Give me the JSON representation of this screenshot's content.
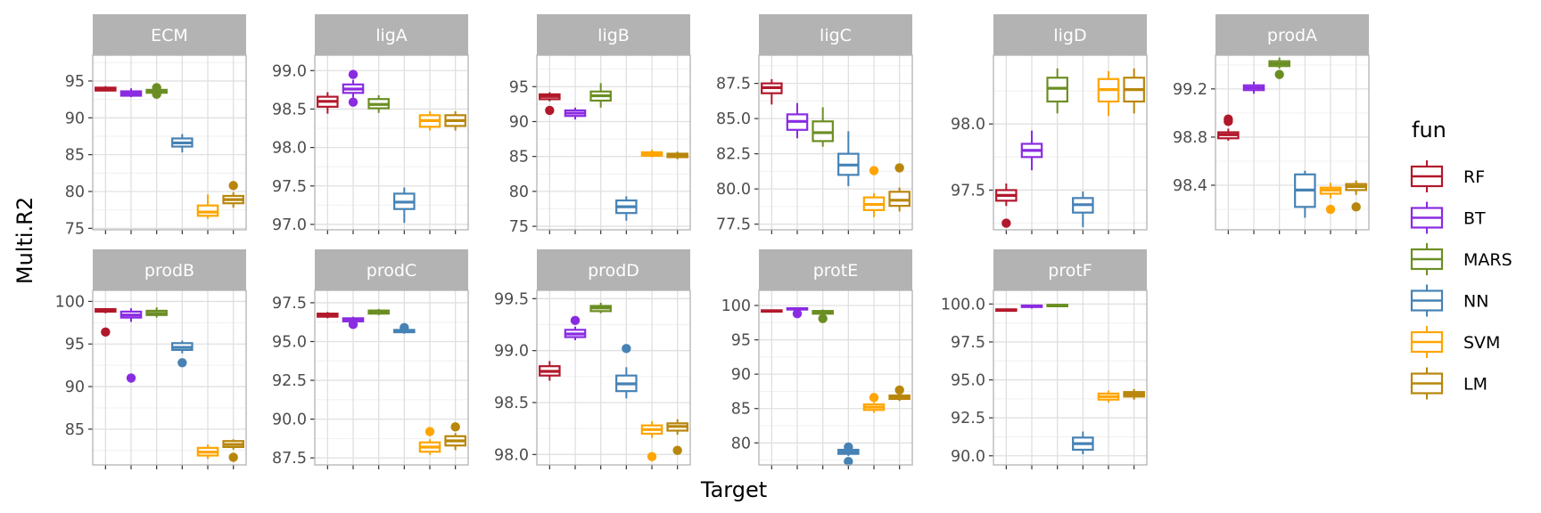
{
  "chart_data": {
    "type": "boxplot",
    "facet_by": "response",
    "xlabel": "Target",
    "ylabel": "Multi.R2",
    "x_tick_labels_shown": false,
    "grid": true,
    "legend": {
      "title": "fun",
      "placement": "right",
      "items": [
        {
          "name": "RF",
          "color": "#B2182B"
        },
        {
          "name": "BT",
          "color": "#8A2BE2"
        },
        {
          "name": "MARS",
          "color": "#6B8E23"
        },
        {
          "name": "NN",
          "color": "#4682B4"
        },
        {
          "name": "SVM",
          "color": "#FFA500"
        },
        {
          "name": "LM",
          "color": "#B8860B"
        }
      ]
    },
    "panels": [
      {
        "title": "ECM",
        "ylim": [
          74.8,
          98.5
        ],
        "yticks": [
          75,
          80,
          85,
          90,
          95
        ],
        "boxes": [
          {
            "fun": "RF",
            "lo": 93.6,
            "q1": 93.7,
            "med": 93.9,
            "q3": 94.1,
            "hi": 94.3,
            "out": []
          },
          {
            "fun": "BT",
            "lo": 92.8,
            "q1": 93.0,
            "med": 93.3,
            "q3": 93.6,
            "hi": 94.0,
            "out": []
          },
          {
            "fun": "MARS",
            "lo": 93.1,
            "q1": 93.4,
            "med": 93.6,
            "q3": 93.8,
            "hi": 94.3,
            "out": [
              93.2,
              94.1
            ]
          },
          {
            "fun": "NN",
            "lo": 85.3,
            "q1": 86.1,
            "med": 86.6,
            "q3": 87.2,
            "hi": 87.8,
            "out": []
          },
          {
            "fun": "SVM",
            "lo": 76.3,
            "q1": 76.7,
            "med": 77.2,
            "q3": 78.1,
            "hi": 79.6,
            "out": []
          },
          {
            "fun": "LM",
            "lo": 77.8,
            "q1": 78.4,
            "med": 78.9,
            "q3": 79.4,
            "hi": 79.9,
            "out": [
              80.8
            ]
          }
        ]
      },
      {
        "title": "ligA",
        "ylim": [
          96.93,
          99.2
        ],
        "yticks": [
          97.0,
          97.5,
          98.0,
          98.5,
          99.0
        ],
        "tick_decimals": 1,
        "boxes": [
          {
            "fun": "RF",
            "lo": 98.44,
            "q1": 98.53,
            "med": 98.6,
            "q3": 98.66,
            "hi": 98.72,
            "out": []
          },
          {
            "fun": "BT",
            "lo": 98.65,
            "q1": 98.71,
            "med": 98.76,
            "q3": 98.82,
            "hi": 98.88,
            "out": [
              98.95,
              98.59
            ]
          },
          {
            "fun": "MARS",
            "lo": 98.45,
            "q1": 98.51,
            "med": 98.56,
            "q3": 98.63,
            "hi": 98.68,
            "out": []
          },
          {
            "fun": "NN",
            "lo": 97.02,
            "q1": 97.2,
            "med": 97.29,
            "q3": 97.4,
            "hi": 97.48,
            "out": []
          },
          {
            "fun": "SVM",
            "lo": 98.22,
            "q1": 98.27,
            "med": 98.35,
            "q3": 98.42,
            "hi": 98.47,
            "out": []
          },
          {
            "fun": "LM",
            "lo": 98.22,
            "q1": 98.28,
            "med": 98.35,
            "q3": 98.42,
            "hi": 98.47,
            "out": []
          }
        ]
      },
      {
        "title": "ligB",
        "ylim": [
          74.5,
          99.5
        ],
        "yticks": [
          75,
          80,
          85,
          90,
          95
        ],
        "boxes": [
          {
            "fun": "RF",
            "lo": 92.9,
            "q1": 93.2,
            "med": 93.6,
            "q3": 93.9,
            "hi": 94.2,
            "out": [
              91.6
            ]
          },
          {
            "fun": "BT",
            "lo": 90.3,
            "q1": 90.8,
            "med": 91.2,
            "q3": 91.6,
            "hi": 92.0,
            "out": []
          },
          {
            "fun": "MARS",
            "lo": 92.0,
            "q1": 93.0,
            "med": 93.7,
            "q3": 94.3,
            "hi": 95.5,
            "out": []
          },
          {
            "fun": "NN",
            "lo": 75.8,
            "q1": 76.9,
            "med": 77.8,
            "q3": 78.7,
            "hi": 79.3,
            "out": []
          },
          {
            "fun": "SVM",
            "lo": 84.9,
            "q1": 85.1,
            "med": 85.3,
            "q3": 85.6,
            "hi": 86.0,
            "out": []
          },
          {
            "fun": "LM",
            "lo": 84.6,
            "q1": 84.9,
            "med": 85.2,
            "q3": 85.4,
            "hi": 85.7,
            "out": []
          }
        ]
      },
      {
        "title": "ligC",
        "ylim": [
          77.1,
          89.5
        ],
        "yticks": [
          77.5,
          80.0,
          82.5,
          85.0,
          87.5
        ],
        "tick_decimals": 1,
        "boxes": [
          {
            "fun": "RF",
            "lo": 86.0,
            "q1": 86.8,
            "med": 87.2,
            "q3": 87.5,
            "hi": 87.8,
            "out": []
          },
          {
            "fun": "BT",
            "lo": 83.6,
            "q1": 84.2,
            "med": 84.8,
            "q3": 85.3,
            "hi": 86.1,
            "out": []
          },
          {
            "fun": "MARS",
            "lo": 83.0,
            "q1": 83.4,
            "med": 84.0,
            "q3": 84.8,
            "hi": 85.8,
            "out": []
          },
          {
            "fun": "NN",
            "lo": 80.2,
            "q1": 81.0,
            "med": 81.7,
            "q3": 82.5,
            "hi": 84.1,
            "out": []
          },
          {
            "fun": "SVM",
            "lo": 78.0,
            "q1": 78.5,
            "med": 78.9,
            "q3": 79.4,
            "hi": 79.7,
            "out": [
              81.3
            ]
          },
          {
            "fun": "LM",
            "lo": 78.4,
            "q1": 78.8,
            "med": 79.2,
            "q3": 79.8,
            "hi": 80.1,
            "out": [
              81.5
            ]
          }
        ]
      },
      {
        "title": "ligD",
        "ylim": [
          97.2,
          98.52
        ],
        "yticks": [
          97.5,
          98.0
        ],
        "tick_decimals": 1,
        "boxes": [
          {
            "fun": "RF",
            "lo": 97.38,
            "q1": 97.42,
            "med": 97.46,
            "q3": 97.5,
            "hi": 97.55,
            "out": [
              97.25
            ]
          },
          {
            "fun": "BT",
            "lo": 97.65,
            "q1": 97.75,
            "med": 97.8,
            "q3": 97.85,
            "hi": 97.95,
            "out": []
          },
          {
            "fun": "MARS",
            "lo": 98.08,
            "q1": 98.17,
            "med": 98.27,
            "q3": 98.35,
            "hi": 98.42,
            "out": []
          },
          {
            "fun": "NN",
            "lo": 97.22,
            "q1": 97.33,
            "med": 97.39,
            "q3": 97.44,
            "hi": 97.49,
            "out": []
          },
          {
            "fun": "SVM",
            "lo": 98.06,
            "q1": 98.17,
            "med": 98.26,
            "q3": 98.34,
            "hi": 98.4,
            "out": []
          },
          {
            "fun": "LM",
            "lo": 98.08,
            "q1": 98.17,
            "med": 98.26,
            "q3": 98.35,
            "hi": 98.42,
            "out": []
          }
        ]
      },
      {
        "title": "prodA",
        "ylim": [
          98.03,
          99.48
        ],
        "yticks": [
          98.4,
          98.8,
          99.2
        ],
        "tick_decimals": 1,
        "boxes": [
          {
            "fun": "RF",
            "lo": 98.77,
            "q1": 98.79,
            "med": 98.82,
            "q3": 98.84,
            "hi": 98.87,
            "out": [
              98.93,
              98.95
            ]
          },
          {
            "fun": "BT",
            "lo": 99.16,
            "q1": 99.19,
            "med": 99.21,
            "q3": 99.23,
            "hi": 99.26,
            "out": []
          },
          {
            "fun": "MARS",
            "lo": 99.37,
            "q1": 99.39,
            "med": 99.41,
            "q3": 99.43,
            "hi": 99.46,
            "out": [
              99.32
            ]
          },
          {
            "fun": "NN",
            "lo": 98.13,
            "q1": 98.22,
            "med": 98.36,
            "q3": 98.49,
            "hi": 98.52,
            "out": []
          },
          {
            "fun": "SVM",
            "lo": 98.29,
            "q1": 98.33,
            "med": 98.36,
            "q3": 98.38,
            "hi": 98.42,
            "out": [
              98.2
            ]
          },
          {
            "fun": "LM",
            "lo": 98.32,
            "q1": 98.36,
            "med": 98.39,
            "q3": 98.41,
            "hi": 98.44,
            "out": [
              98.22
            ]
          }
        ]
      },
      {
        "title": "prodB",
        "ylim": [
          80.8,
          101.3
        ],
        "yticks": [
          85,
          90,
          95,
          100
        ],
        "boxes": [
          {
            "fun": "RF",
            "lo": 98.6,
            "q1": 98.8,
            "med": 99.0,
            "q3": 99.1,
            "hi": 99.2,
            "out": [
              96.4
            ]
          },
          {
            "fun": "BT",
            "lo": 97.6,
            "q1": 98.1,
            "med": 98.4,
            "q3": 98.8,
            "hi": 99.2,
            "out": [
              91.0
            ]
          },
          {
            "fun": "MARS",
            "lo": 98.1,
            "q1": 98.4,
            "med": 98.6,
            "q3": 98.9,
            "hi": 99.3,
            "out": []
          },
          {
            "fun": "NN",
            "lo": 93.9,
            "q1": 94.3,
            "med": 94.6,
            "q3": 95.1,
            "hi": 95.4,
            "out": [
              92.8
            ]
          },
          {
            "fun": "SVM",
            "lo": 81.5,
            "q1": 81.9,
            "med": 82.3,
            "q3": 82.8,
            "hi": 83.2,
            "out": []
          },
          {
            "fun": "LM",
            "lo": 82.6,
            "q1": 82.9,
            "med": 83.2,
            "q3": 83.6,
            "hi": 83.8,
            "out": [
              81.7
            ]
          }
        ]
      },
      {
        "title": "prodC",
        "ylim": [
          87.05,
          98.3
        ],
        "yticks": [
          87.5,
          90.0,
          92.5,
          95.0,
          97.5
        ],
        "tick_decimals": 1,
        "boxes": [
          {
            "fun": "RF",
            "lo": 96.5,
            "q1": 96.6,
            "med": 96.7,
            "q3": 96.8,
            "hi": 96.9,
            "out": []
          },
          {
            "fun": "BT",
            "lo": 96.2,
            "q1": 96.3,
            "med": 96.4,
            "q3": 96.5,
            "hi": 96.6,
            "out": [
              96.1
            ]
          },
          {
            "fun": "MARS",
            "lo": 96.7,
            "q1": 96.8,
            "med": 96.9,
            "q3": 97.0,
            "hi": 97.1,
            "out": []
          },
          {
            "fun": "NN",
            "lo": 95.5,
            "q1": 95.6,
            "med": 95.7,
            "q3": 95.75,
            "hi": 95.8,
            "out": [
              95.9
            ]
          },
          {
            "fun": "SVM",
            "lo": 87.7,
            "q1": 87.9,
            "med": 88.2,
            "q3": 88.5,
            "hi": 88.7,
            "out": [
              89.2
            ]
          },
          {
            "fun": "LM",
            "lo": 88.0,
            "q1": 88.3,
            "med": 88.6,
            "q3": 88.9,
            "hi": 89.1,
            "out": [
              89.5
            ]
          }
        ]
      },
      {
        "title": "prodD",
        "ylim": [
          97.9,
          99.58
        ],
        "yticks": [
          98.0,
          98.5,
          99.0,
          99.5
        ],
        "tick_decimals": 1,
        "boxes": [
          {
            "fun": "RF",
            "lo": 98.71,
            "q1": 98.76,
            "med": 98.8,
            "q3": 98.85,
            "hi": 98.9,
            "out": []
          },
          {
            "fun": "BT",
            "lo": 99.1,
            "q1": 99.13,
            "med": 99.16,
            "q3": 99.2,
            "hi": 99.23,
            "out": [
              99.29
            ]
          },
          {
            "fun": "MARS",
            "lo": 99.36,
            "q1": 99.38,
            "med": 99.41,
            "q3": 99.43,
            "hi": 99.46,
            "out": []
          },
          {
            "fun": "NN",
            "lo": 98.54,
            "q1": 98.61,
            "med": 98.68,
            "q3": 98.76,
            "hi": 98.84,
            "out": [
              99.02
            ]
          },
          {
            "fun": "SVM",
            "lo": 98.16,
            "q1": 98.2,
            "med": 98.24,
            "q3": 98.28,
            "hi": 98.32,
            "out": [
              97.98
            ]
          },
          {
            "fun": "LM",
            "lo": 98.19,
            "q1": 98.23,
            "med": 98.27,
            "q3": 98.3,
            "hi": 98.34,
            "out": [
              98.04
            ]
          }
        ]
      },
      {
        "title": "protE",
        "ylim": [
          76.8,
          102.2
        ],
        "yticks": [
          80,
          85,
          90,
          95,
          100
        ],
        "boxes": [
          {
            "fun": "RF",
            "lo": 99.0,
            "q1": 99.1,
            "med": 99.2,
            "q3": 99.3,
            "hi": 99.4,
            "out": []
          },
          {
            "fun": "BT",
            "lo": 99.2,
            "q1": 99.4,
            "med": 99.5,
            "q3": 99.6,
            "hi": 99.7,
            "out": [
              98.8
            ]
          },
          {
            "fun": "MARS",
            "lo": 98.5,
            "q1": 98.8,
            "med": 99.0,
            "q3": 99.2,
            "hi": 99.4,
            "out": [
              98.1
            ]
          },
          {
            "fun": "NN",
            "lo": 78.1,
            "q1": 78.4,
            "med": 78.7,
            "q3": 79.0,
            "hi": 79.3,
            "out": [
              79.4,
              77.3
            ]
          },
          {
            "fun": "SVM",
            "lo": 84.4,
            "q1": 84.8,
            "med": 85.2,
            "q3": 85.6,
            "hi": 85.9,
            "out": [
              86.6
            ]
          },
          {
            "fun": "LM",
            "lo": 86.1,
            "q1": 86.4,
            "med": 86.7,
            "q3": 86.9,
            "hi": 87.2,
            "out": [
              87.7
            ]
          }
        ]
      },
      {
        "title": "protF",
        "ylim": [
          89.4,
          100.9
        ],
        "yticks": [
          90.0,
          92.5,
          95.0,
          97.5,
          100.0
        ],
        "tick_decimals": 1,
        "boxes": [
          {
            "fun": "RF",
            "lo": 99.5,
            "q1": 99.55,
            "med": 99.6,
            "q3": 99.65,
            "hi": 99.7,
            "out": []
          },
          {
            "fun": "BT",
            "lo": 99.7,
            "q1": 99.8,
            "med": 99.85,
            "q3": 99.9,
            "hi": 99.95,
            "out": []
          },
          {
            "fun": "MARS",
            "lo": 99.8,
            "q1": 99.85,
            "med": 99.9,
            "q3": 99.95,
            "hi": 100.0,
            "out": []
          },
          {
            "fun": "NN",
            "lo": 90.1,
            "q1": 90.4,
            "med": 90.8,
            "q3": 91.2,
            "hi": 91.6,
            "out": []
          },
          {
            "fun": "SVM",
            "lo": 93.5,
            "q1": 93.7,
            "med": 93.9,
            "q3": 94.1,
            "hi": 94.3,
            "out": []
          },
          {
            "fun": "LM",
            "lo": 93.7,
            "q1": 93.9,
            "med": 94.05,
            "q3": 94.2,
            "hi": 94.4,
            "out": []
          }
        ]
      }
    ]
  }
}
